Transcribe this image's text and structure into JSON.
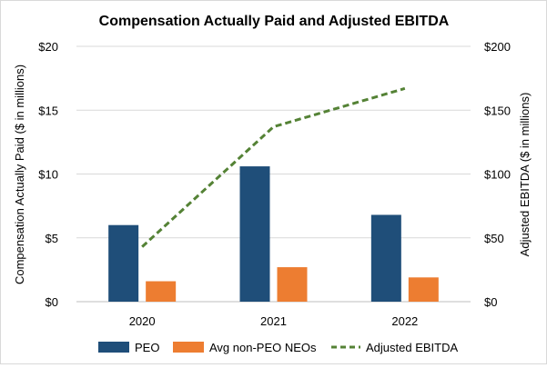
{
  "chart_data": {
    "type": "bar",
    "title": "Compensation Actually Paid and Adjusted EBITDA",
    "categories": [
      "2020",
      "2021",
      "2022"
    ],
    "ylabel": "Compensation Actually Paid ($ in millions)",
    "y2label": "Adjusted EBITDA ($ in millions)",
    "ylim": [
      0,
      20
    ],
    "y2lim": [
      0,
      200
    ],
    "yticks": [
      {
        "value": 0,
        "label": "$0"
      },
      {
        "value": 5,
        "label": "$5"
      },
      {
        "value": 10,
        "label": "$10"
      },
      {
        "value": 15,
        "label": "$15"
      },
      {
        "value": 20,
        "label": "$20"
      }
    ],
    "y2ticks": [
      {
        "value": 0,
        "label": "$0"
      },
      {
        "value": 50,
        "label": "$50"
      },
      {
        "value": 100,
        "label": "$100"
      },
      {
        "value": 150,
        "label": "$150"
      },
      {
        "value": 200,
        "label": "$200"
      }
    ],
    "grid": true,
    "legend_position": "bottom",
    "series": [
      {
        "name": "PEO",
        "kind": "bar",
        "axis": "left",
        "color": "#1f4e79",
        "values": [
          6.0,
          10.6,
          6.8
        ]
      },
      {
        "name": "Avg non-PEO NEOs",
        "kind": "bar",
        "axis": "left",
        "color": "#ed7d31",
        "values": [
          1.6,
          2.7,
          1.9
        ]
      },
      {
        "name": "Adjusted EBITDA",
        "kind": "line",
        "style": "dashed",
        "axis": "right",
        "color": "#548235",
        "values": [
          43,
          137,
          167
        ]
      }
    ]
  }
}
